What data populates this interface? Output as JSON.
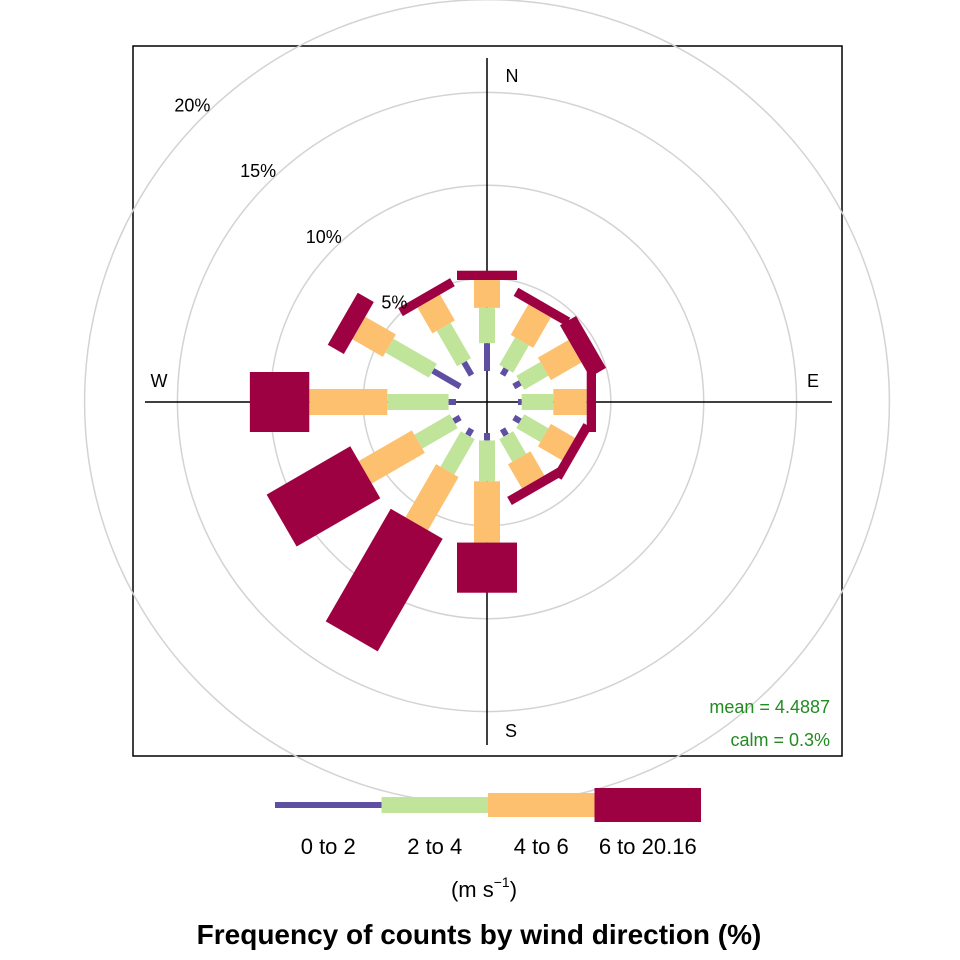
{
  "chart_data": {
    "type": "windrose",
    "title": "Frequency of counts by wind direction (%)",
    "directions": [
      0,
      30,
      60,
      90,
      120,
      150,
      180,
      210,
      240,
      270,
      300,
      330
    ],
    "compass_labels": {
      "N": "N",
      "E": "E",
      "S": "S",
      "W": "W"
    },
    "ring_values": [
      5,
      10,
      15,
      20
    ],
    "ring_labels": [
      "5%",
      "10%",
      "15%",
      "20%"
    ],
    "axis_max": 21,
    "series": [
      {
        "name": "0 to 2",
        "color": "#5E4FA2",
        "values": [
          1.5,
          0.4,
          0.4,
          0.2,
          0.4,
          0.4,
          0.4,
          0.4,
          0.4,
          0.4,
          1.7,
          0.8
        ]
      },
      {
        "name": "2 to 4",
        "color": "#BFE49A",
        "values": [
          1.9,
          1.7,
          1.5,
          1.7,
          1.5,
          1.4,
          2.2,
          2.2,
          2.2,
          3.3,
          2.7,
          2.2
        ]
      },
      {
        "name": "4 to 6",
        "color": "#FCC06E",
        "values": [
          1.5,
          1.9,
          1.9,
          1.8,
          1.5,
          1.5,
          3.3,
          3.3,
          3.3,
          4.2,
          1.9,
          1.6
        ]
      },
      {
        "name": "6 to 20.16",
        "color": "#9E0142",
        "values": [
          0.5,
          0.5,
          1.0,
          0.5,
          0.5,
          0.5,
          2.7,
          7.0,
          5.2,
          3.2,
          1.0,
          0.5
        ]
      }
    ],
    "legend_units_prefix": "(m s",
    "legend_units_exp": "−1",
    "legend_units_suffix": ")",
    "stats": {
      "mean": "mean = 4.4887",
      "calm": "calm = 0.3%",
      "color": "#228B22"
    },
    "grid": true
  }
}
